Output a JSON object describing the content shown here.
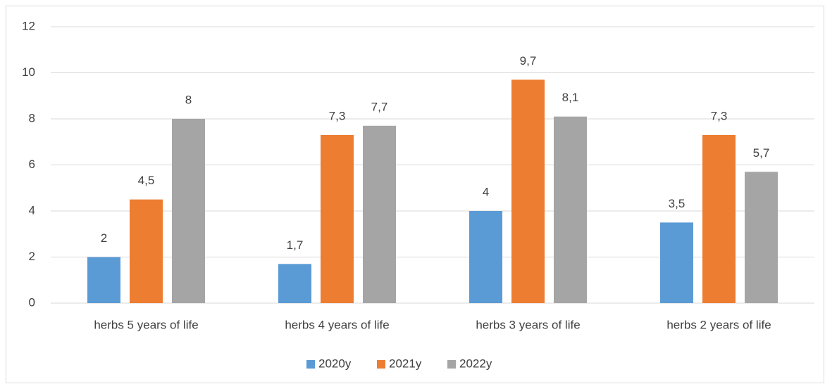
{
  "chart_data": {
    "type": "bar",
    "categories": [
      "herbs 5 years of life",
      "herbs 4 years of life",
      "herbs 3 years of life",
      "herbs 2 years of life"
    ],
    "series": [
      {
        "name": "2020y",
        "color": "#5b9bd5",
        "values": [
          2,
          1.7,
          4,
          3.5
        ],
        "value_labels": [
          "2",
          "1,7",
          "4",
          "3,5"
        ]
      },
      {
        "name": "2021y",
        "color": "#ed7d31",
        "values": [
          4.5,
          7.3,
          9.7,
          7.3
        ],
        "value_labels": [
          "4,5",
          "7,3",
          "9,7",
          "7,3"
        ]
      },
      {
        "name": "2022y",
        "color": "#a5a5a5",
        "values": [
          8,
          7.7,
          8.1,
          5.7
        ],
        "value_labels": [
          "8",
          "7,7",
          "8,1",
          "5,7"
        ]
      }
    ],
    "ylim": [
      0,
      12
    ],
    "yticks": [
      0,
      2,
      4,
      6,
      8,
      10,
      12
    ],
    "grid": true,
    "legend": "bottom"
  }
}
